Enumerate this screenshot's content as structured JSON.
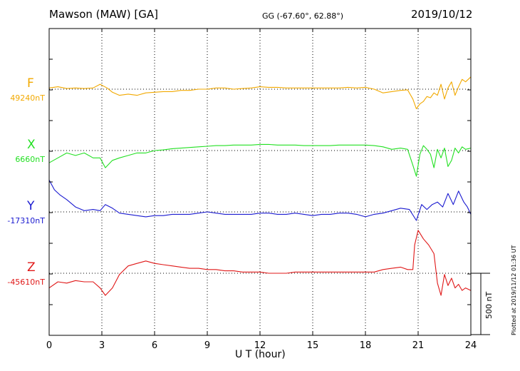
{
  "header": {
    "station": "Mawson (MAW)  [GA]",
    "coordinates": "GG (-67.60°,  62.88°)",
    "date": "2019/10/12"
  },
  "plotted_note": "Plotted at 2019/11/12 01:36 UT",
  "scale_label": "500 nT",
  "chart_data": {
    "type": "line",
    "title": "Mawson (MAW)  [GA]",
    "xlabel": "U T (hour)",
    "ylabel": "",
    "xlim": [
      0,
      24
    ],
    "x_ticks": [
      0,
      3,
      6,
      9,
      12,
      15,
      18,
      21,
      24
    ],
    "grid": true,
    "scale_bar_nT": 500,
    "series": [
      {
        "name": "F",
        "baseline_label": "49240nT",
        "color": "#f2a900",
        "x": [
          0,
          0.5,
          1,
          1.5,
          2,
          2.5,
          2.9,
          3.3,
          3.6,
          4,
          4.5,
          5,
          5.5,
          6,
          6.5,
          7,
          7.5,
          8,
          8.5,
          9,
          9.5,
          10,
          10.5,
          11,
          11.5,
          12,
          12.5,
          13,
          13.5,
          14,
          14.5,
          15,
          15.5,
          16,
          16.5,
          17,
          17.5,
          18,
          18.5,
          19,
          19.5,
          20,
          20.4,
          20.7,
          20.9,
          21.1,
          21.3,
          21.5,
          21.7,
          21.9,
          22.1,
          22.3,
          22.5,
          22.7,
          22.9,
          23.1,
          23.3,
          23.5,
          23.7,
          24
        ],
        "values": [
          10,
          20,
          5,
          10,
          5,
          10,
          40,
          10,
          -25,
          -50,
          -40,
          -50,
          -30,
          -25,
          -20,
          -20,
          -10,
          -10,
          0,
          0,
          10,
          10,
          0,
          5,
          10,
          20,
          15,
          15,
          10,
          10,
          10,
          10,
          10,
          10,
          10,
          15,
          10,
          15,
          0,
          -30,
          -20,
          -10,
          -5,
          -80,
          -160,
          -120,
          -100,
          -60,
          -70,
          -30,
          -50,
          40,
          -80,
          10,
          60,
          -50,
          20,
          80,
          60,
          100
        ]
      },
      {
        "name": "X",
        "baseline_label": "6660nT",
        "color": "#22e022",
        "x": [
          0,
          0.5,
          1,
          1.5,
          2,
          2.5,
          2.9,
          3.2,
          3.6,
          4,
          4.5,
          5,
          5.5,
          6,
          6.5,
          7,
          7.5,
          8,
          8.5,
          9,
          9.5,
          10,
          10.5,
          11,
          11.5,
          12,
          12.5,
          13,
          13.5,
          14,
          14.5,
          15,
          15.5,
          16,
          16.5,
          17,
          17.5,
          18,
          18.5,
          19,
          19.5,
          20,
          20.4,
          20.7,
          20.9,
          21.1,
          21.3,
          21.5,
          21.7,
          21.9,
          22.1,
          22.3,
          22.5,
          22.7,
          22.9,
          23.1,
          23.3,
          23.5,
          23.7,
          24
        ],
        "values": [
          -100,
          -60,
          -20,
          -40,
          -20,
          -60,
          -60,
          -140,
          -80,
          -60,
          -40,
          -20,
          -20,
          0,
          5,
          15,
          20,
          25,
          30,
          35,
          40,
          40,
          45,
          45,
          45,
          50,
          50,
          45,
          45,
          45,
          40,
          40,
          40,
          40,
          45,
          45,
          45,
          45,
          40,
          30,
          10,
          20,
          10,
          -120,
          -210,
          -30,
          40,
          10,
          -30,
          -140,
          10,
          -60,
          20,
          -130,
          -80,
          20,
          -20,
          30,
          10,
          20
        ]
      },
      {
        "name": "Y",
        "baseline_label": "-17310nT",
        "color": "#1a1ad0",
        "x": [
          0,
          0.3,
          0.6,
          1,
          1.5,
          2,
          2.5,
          2.9,
          3.2,
          3.6,
          4,
          4.5,
          5,
          5.5,
          6,
          6.5,
          7,
          7.5,
          8,
          8.5,
          9,
          9.5,
          10,
          10.5,
          11,
          11.5,
          12,
          12.5,
          13,
          13.5,
          14,
          14.5,
          15,
          15.5,
          16,
          16.5,
          17,
          17.5,
          18,
          18.5,
          19,
          19.5,
          20,
          20.5,
          20.9,
          21.2,
          21.5,
          21.8,
          22.1,
          22.4,
          22.7,
          23,
          23.3,
          23.6,
          23.8,
          24
        ],
        "values": [
          260,
          180,
          140,
          100,
          40,
          10,
          20,
          10,
          60,
          30,
          -10,
          -20,
          -30,
          -40,
          -30,
          -30,
          -20,
          -20,
          -20,
          -10,
          0,
          -10,
          -20,
          -20,
          -20,
          -20,
          -10,
          -10,
          -20,
          -20,
          -10,
          -20,
          -30,
          -20,
          -20,
          -10,
          -10,
          -20,
          -40,
          -20,
          -10,
          10,
          30,
          20,
          -70,
          60,
          20,
          60,
          80,
          40,
          150,
          60,
          170,
          80,
          40,
          -20
        ]
      },
      {
        "name": "Z",
        "baseline_label": "-45610nT",
        "color": "#e01818",
        "x": [
          0,
          0.5,
          1,
          1.5,
          2,
          2.5,
          2.9,
          3.2,
          3.6,
          4,
          4.5,
          5,
          5.5,
          6,
          6.5,
          7,
          7.5,
          8,
          8.5,
          9,
          9.5,
          10,
          10.5,
          11,
          11.5,
          12,
          12.5,
          13,
          13.5,
          14,
          14.5,
          15,
          15.5,
          16,
          16.5,
          17,
          17.5,
          18,
          18.5,
          19,
          19.5,
          20,
          20.4,
          20.7,
          20.8,
          21,
          21.3,
          21.6,
          21.9,
          22.1,
          22.3,
          22.5,
          22.7,
          22.9,
          23.1,
          23.3,
          23.5,
          23.7,
          24
        ],
        "values": [
          -120,
          -70,
          -80,
          -60,
          -70,
          -70,
          -120,
          -180,
          -120,
          -10,
          60,
          80,
          100,
          80,
          70,
          60,
          50,
          40,
          40,
          30,
          30,
          20,
          20,
          10,
          10,
          10,
          0,
          0,
          0,
          10,
          10,
          10,
          10,
          10,
          10,
          10,
          10,
          10,
          10,
          30,
          40,
          50,
          30,
          30,
          230,
          350,
          280,
          230,
          160,
          -80,
          -180,
          -10,
          -100,
          -40,
          -120,
          -90,
          -140,
          -120,
          -140
        ]
      }
    ]
  }
}
